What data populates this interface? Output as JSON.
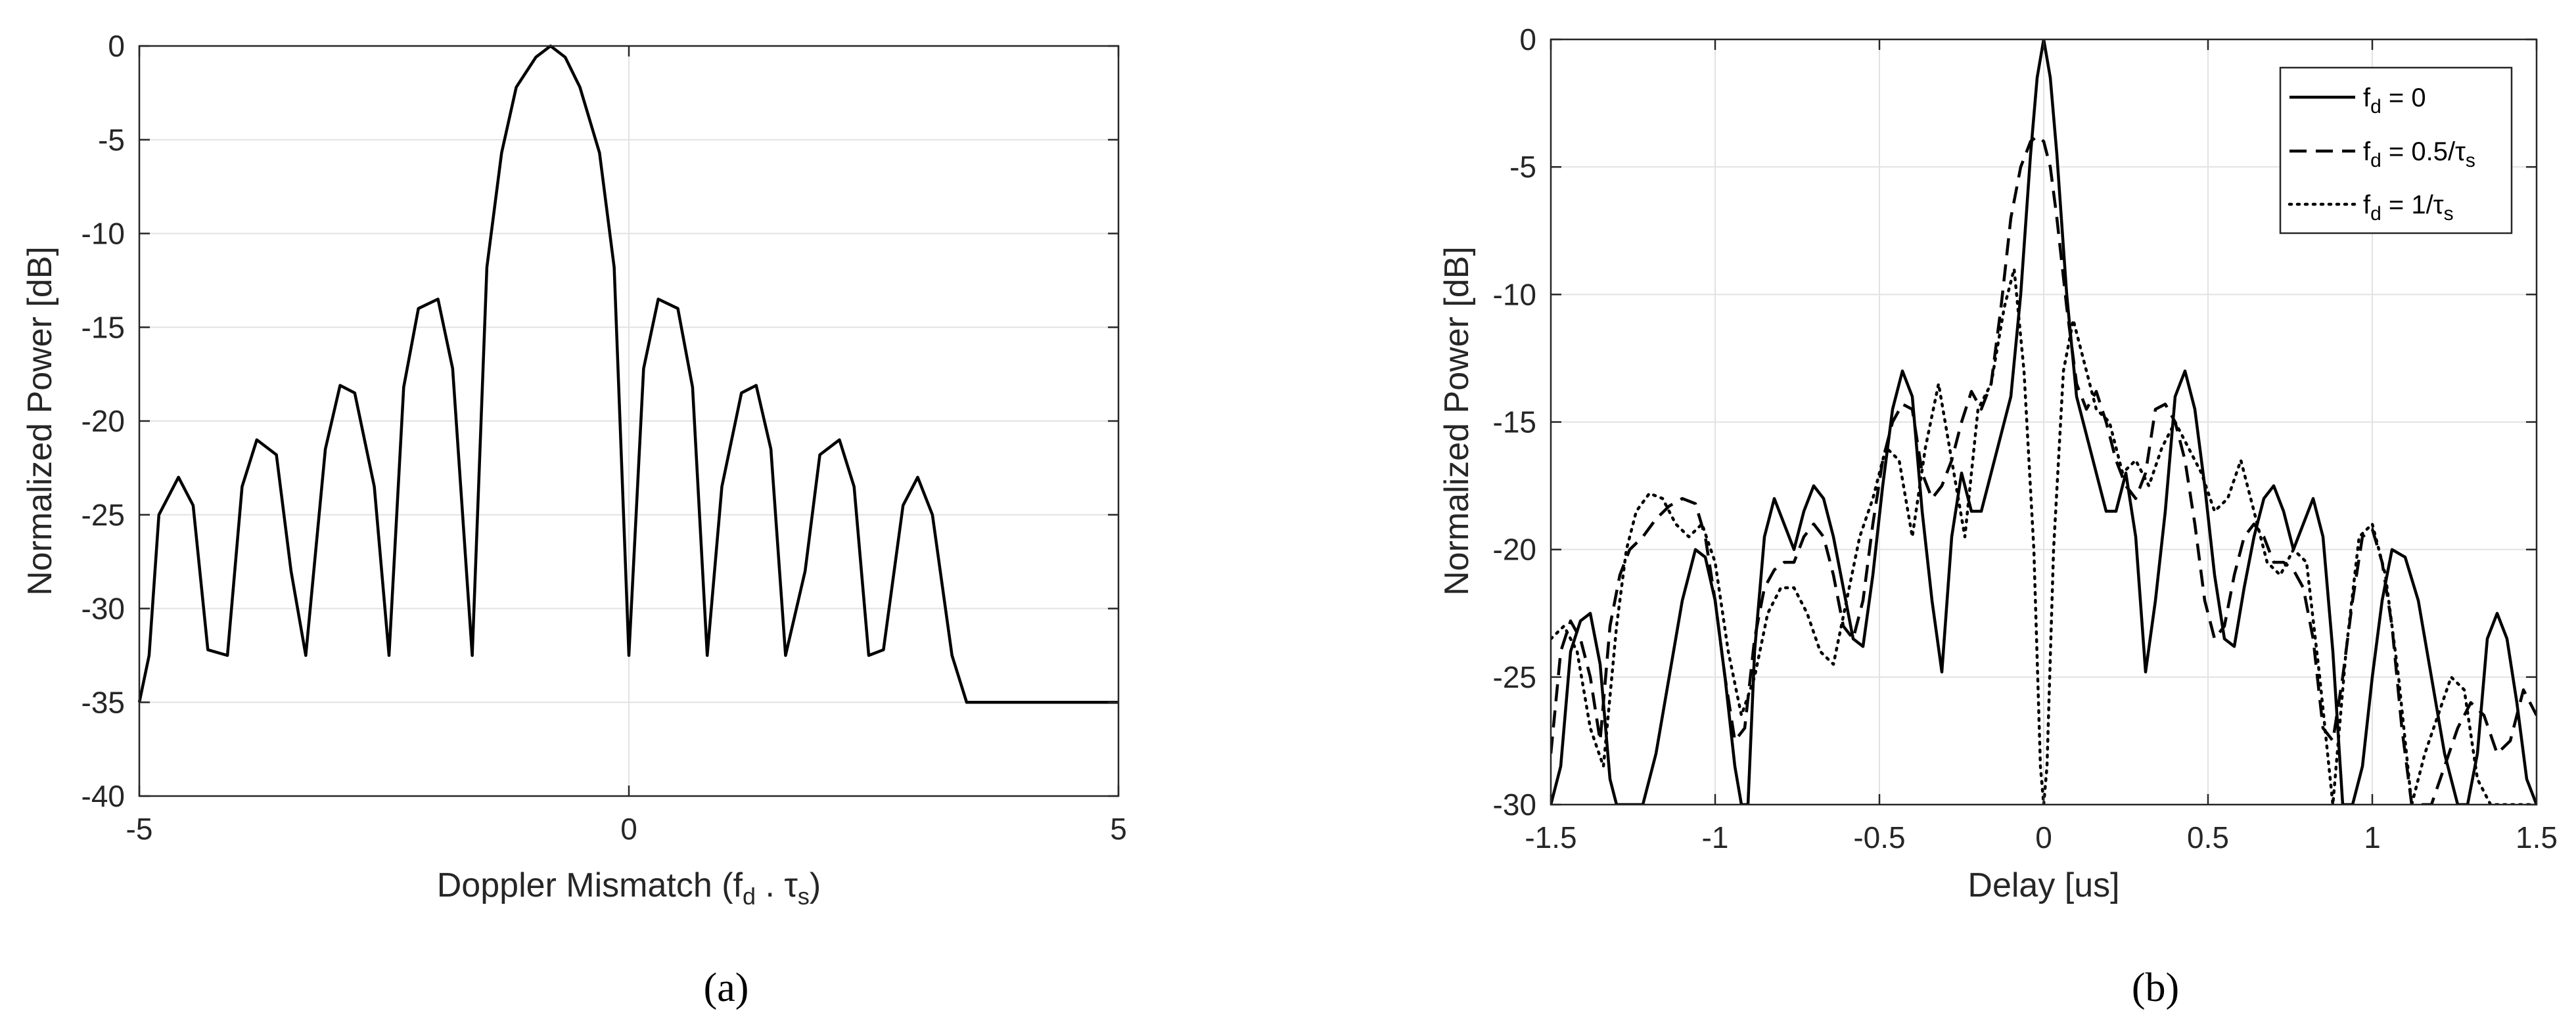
{
  "chart_data": [
    {
      "type": "line",
      "panel_label": "(a)",
      "xlabel_main": "Doppler Mismatch (f",
      "xlabel_sub1": "d",
      "xlabel_mid": " . τ",
      "xlabel_sub2": "s",
      "xlabel_end": ")",
      "ylabel": "Normalized Power [dB]",
      "xlim": [
        -5,
        5
      ],
      "ylim": [
        -40,
        0
      ],
      "xticks": [
        "-5",
        "0",
        "5"
      ],
      "xtick_values": [
        -5,
        0,
        5
      ],
      "yticks": [
        "0",
        "-5",
        "-10",
        "-15",
        "-20",
        "-25",
        "-30",
        "-35",
        "-40"
      ],
      "ytick_values": [
        0,
        -5,
        -10,
        -15,
        -20,
        -25,
        -30,
        -35,
        -40
      ],
      "grid": true,
      "series": [
        {
          "style": "solid",
          "x": [
            -5.0,
            -4.9,
            -4.8,
            -4.6,
            -4.45,
            -4.3,
            -4.1,
            -3.95,
            -3.8,
            -3.6,
            -3.45,
            -3.3,
            -3.1,
            -2.95,
            -2.8,
            -2.6,
            -2.45,
            -2.3,
            -2.15,
            -1.95,
            -1.8,
            -1.6,
            -1.45,
            -1.3,
            -1.15,
            -0.95,
            -0.8,
            -0.65,
            -0.5,
            -0.3,
            -0.15,
            0.0,
            0.15,
            0.3,
            0.5,
            0.65,
            0.8,
            0.95,
            1.15,
            1.3,
            1.45,
            1.6,
            1.8,
            1.95,
            2.15,
            2.3,
            2.45,
            2.6,
            2.8,
            2.95,
            3.1,
            3.3,
            3.45,
            3.6,
            3.8,
            3.95,
            4.1,
            4.3,
            4.45,
            4.6,
            4.8,
            4.9,
            5.0
          ],
          "y": [
            -35.0,
            -32.5,
            -25.0,
            -23.0,
            -24.5,
            -32.2,
            -32.5,
            -23.5,
            -21.0,
            -21.8,
            -28.0,
            -32.5,
            -21.5,
            -18.1,
            -18.5,
            -23.5,
            -32.5,
            -18.2,
            -14.0,
            -13.5,
            -17.2,
            -32.5,
            -11.8,
            -5.7,
            -2.2,
            -0.6,
            0.0,
            -0.6,
            -2.2,
            -5.7,
            -11.8,
            -32.5,
            -17.2,
            -13.5,
            -14.0,
            -18.2,
            -32.5,
            -23.5,
            -18.5,
            -18.1,
            -21.5,
            -32.5,
            -28.0,
            -21.8,
            -21.0,
            -23.5,
            -32.5,
            -32.2,
            -24.5,
            -23.0,
            -25.0,
            -32.5,
            -35.0,
            -35.0,
            -35.0,
            -35.0,
            -35.0,
            -35.0,
            -35.0,
            -35.0,
            -35.0,
            -35.0,
            -35.0
          ]
        }
      ]
    },
    {
      "type": "line",
      "panel_label": "(b)",
      "xlabel": "Delay [us]",
      "ylabel": "Normalized Power [dB]",
      "xlim": [
        -1.5,
        1.5
      ],
      "ylim": [
        -30,
        0
      ],
      "xticks": [
        "-1.5",
        "-1",
        "-0.5",
        "0",
        "0.5",
        "1",
        "1.5"
      ],
      "xtick_values": [
        -1.5,
        -1,
        -0.5,
        0,
        0.5,
        1,
        1.5
      ],
      "yticks": [
        "0",
        "-5",
        "-10",
        "-15",
        "-20",
        "-25",
        "-30"
      ],
      "ytick_values": [
        0,
        -5,
        -10,
        -15,
        -20,
        -25,
        -30
      ],
      "grid": true,
      "legend_position": "top-right",
      "series": [
        {
          "legend_main": "f",
          "legend_sub": "d",
          "legend_rest": " = 0",
          "style": "solid",
          "x": [
            -1.5,
            -1.47,
            -1.44,
            -1.41,
            -1.38,
            -1.35,
            -1.32,
            -1.3,
            -1.28,
            -1.25,
            -1.22,
            -1.18,
            -1.14,
            -1.1,
            -1.06,
            -1.03,
            -1.0,
            -0.97,
            -0.94,
            -0.92,
            -0.9,
            -0.88,
            -0.85,
            -0.82,
            -0.79,
            -0.76,
            -0.73,
            -0.7,
            -0.67,
            -0.64,
            -0.61,
            -0.58,
            -0.55,
            -0.52,
            -0.49,
            -0.46,
            -0.43,
            -0.4,
            -0.37,
            -0.34,
            -0.31,
            -0.28,
            -0.25,
            -0.22,
            -0.19,
            -0.16,
            -0.13,
            -0.1,
            -0.07,
            -0.04,
            -0.02,
            0.0,
            0.02,
            0.04,
            0.07,
            0.1,
            0.13,
            0.16,
            0.19,
            0.22,
            0.25,
            0.28,
            0.31,
            0.34,
            0.37,
            0.4,
            0.43,
            0.46,
            0.49,
            0.52,
            0.55,
            0.58,
            0.61,
            0.64,
            0.67,
            0.7,
            0.73,
            0.76,
            0.79,
            0.82,
            0.85,
            0.88,
            0.91,
            0.94,
            0.97,
            1.0,
            1.03,
            1.06,
            1.1,
            1.14,
            1.18,
            1.22,
            1.26,
            1.29,
            1.32,
            1.35,
            1.38,
            1.41,
            1.44,
            1.47,
            1.5
          ],
          "y": [
            -30.0,
            -28.5,
            -24.0,
            -22.8,
            -22.5,
            -24.5,
            -29.0,
            -30.0,
            -30.0,
            -30.0,
            -30.0,
            -28.0,
            -25.0,
            -22.0,
            -20.0,
            -20.3,
            -22.0,
            -25.0,
            -28.5,
            -30.0,
            -30.0,
            -24.0,
            -19.5,
            -18.0,
            -19.0,
            -20.0,
            -18.5,
            -17.5,
            -18.0,
            -19.5,
            -21.5,
            -23.5,
            -23.8,
            -21.0,
            -17.5,
            -14.5,
            -13.0,
            -14.0,
            -18.5,
            -22.0,
            -24.8,
            -19.5,
            -17.0,
            -18.5,
            -18.5,
            -17.0,
            -15.5,
            -14.0,
            -10.0,
            -4.5,
            -1.5,
            0.0,
            -1.5,
            -4.5,
            -10.0,
            -14.0,
            -15.5,
            -17.0,
            -18.5,
            -18.5,
            -17.0,
            -19.5,
            -24.8,
            -22.0,
            -18.5,
            -14.0,
            -13.0,
            -14.5,
            -17.5,
            -21.0,
            -23.5,
            -23.8,
            -21.5,
            -19.5,
            -18.0,
            -17.5,
            -18.5,
            -20.0,
            -19.0,
            -18.0,
            -19.5,
            -24.0,
            -30.0,
            -30.0,
            -28.5,
            -25.0,
            -22.0,
            -20.0,
            -20.3,
            -22.0,
            -25.0,
            -28.0,
            -30.0,
            -30.0,
            -28.0,
            -23.5,
            -22.5,
            -23.5,
            -26.0,
            -29.0,
            -30.0
          ]
        },
        {
          "legend_main": "f",
          "legend_sub": "d",
          "legend_rest": " = 0.5/τ",
          "legend_sub2": "s",
          "style": "dashed",
          "x": [
            -1.5,
            -1.47,
            -1.44,
            -1.41,
            -1.38,
            -1.35,
            -1.32,
            -1.29,
            -1.26,
            -1.22,
            -1.18,
            -1.14,
            -1.1,
            -1.06,
            -1.03,
            -1.0,
            -0.97,
            -0.94,
            -0.91,
            -0.88,
            -0.85,
            -0.82,
            -0.79,
            -0.76,
            -0.73,
            -0.7,
            -0.67,
            -0.64,
            -0.61,
            -0.58,
            -0.55,
            -0.52,
            -0.49,
            -0.46,
            -0.43,
            -0.4,
            -0.37,
            -0.34,
            -0.31,
            -0.28,
            -0.25,
            -0.22,
            -0.19,
            -0.16,
            -0.13,
            -0.1,
            -0.07,
            -0.04,
            -0.02,
            0.0,
            0.02,
            0.04,
            0.07,
            0.1,
            0.13,
            0.16,
            0.19,
            0.22,
            0.25,
            0.28,
            0.31,
            0.34,
            0.37,
            0.4,
            0.43,
            0.46,
            0.49,
            0.52,
            0.55,
            0.58,
            0.61,
            0.64,
            0.67,
            0.7,
            0.73,
            0.76,
            0.79,
            0.82,
            0.85,
            0.88,
            0.91,
            0.94,
            0.97,
            1.0,
            1.03,
            1.06,
            1.09,
            1.12,
            1.15,
            1.18,
            1.22,
            1.26,
            1.3,
            1.34,
            1.38,
            1.42,
            1.46,
            1.5
          ],
          "y": [
            -28.0,
            -24.0,
            -22.8,
            -23.5,
            -25.0,
            -27.5,
            -23.0,
            -21.0,
            -20.0,
            -19.5,
            -18.8,
            -18.3,
            -18.0,
            -18.2,
            -19.5,
            -22.0,
            -25.0,
            -27.5,
            -27.0,
            -23.5,
            -21.5,
            -20.8,
            -20.5,
            -20.5,
            -19.5,
            -19.0,
            -19.5,
            -21.0,
            -23.0,
            -23.5,
            -22.0,
            -19.0,
            -16.5,
            -15.0,
            -14.3,
            -14.5,
            -17.0,
            -18.0,
            -17.5,
            -16.5,
            -15.0,
            -13.8,
            -14.5,
            -13.5,
            -10.5,
            -7.0,
            -5.0,
            -4.0,
            -3.8,
            -4.0,
            -5.0,
            -7.0,
            -10.5,
            -13.5,
            -14.5,
            -13.8,
            -15.0,
            -16.5,
            -17.5,
            -18.0,
            -17.0,
            -14.5,
            -14.3,
            -15.0,
            -16.5,
            -19.0,
            -22.0,
            -23.5,
            -23.0,
            -21.0,
            -19.5,
            -19.0,
            -19.5,
            -20.5,
            -20.5,
            -20.8,
            -21.5,
            -23.5,
            -27.0,
            -27.5,
            -25.0,
            -22.0,
            -19.5,
            -19.2,
            -20.5,
            -23.0,
            -27.0,
            -30.0,
            -30.0,
            -30.0,
            -28.5,
            -27.0,
            -26.0,
            -26.5,
            -28.0,
            -27.5,
            -25.5,
            -26.5
          ]
        },
        {
          "legend_main": "f",
          "legend_sub": "d",
          "legend_rest": " = 1/τ",
          "legend_sub2": "s",
          "style": "dotted",
          "x": [
            -1.5,
            -1.46,
            -1.42,
            -1.38,
            -1.34,
            -1.3,
            -1.27,
            -1.24,
            -1.2,
            -1.16,
            -1.12,
            -1.08,
            -1.04,
            -1.0,
            -0.96,
            -0.92,
            -0.88,
            -0.84,
            -0.8,
            -0.76,
            -0.72,
            -0.68,
            -0.64,
            -0.6,
            -0.56,
            -0.52,
            -0.48,
            -0.44,
            -0.4,
            -0.36,
            -0.32,
            -0.28,
            -0.24,
            -0.2,
            -0.16,
            -0.12,
            -0.09,
            -0.06,
            -0.03,
            -0.01,
            0.0,
            0.01,
            0.03,
            0.06,
            0.09,
            0.12,
            0.16,
            0.2,
            0.24,
            0.28,
            0.32,
            0.36,
            0.4,
            0.44,
            0.48,
            0.52,
            0.56,
            0.6,
            0.64,
            0.68,
            0.72,
            0.76,
            0.8,
            0.84,
            0.88,
            0.92,
            0.96,
            1.0,
            1.04,
            1.08,
            1.12,
            1.16,
            1.2,
            1.24,
            1.28,
            1.32,
            1.36,
            1.4,
            1.44,
            1.48,
            1.5
          ],
          "y": [
            -23.5,
            -23.0,
            -24.0,
            -27.0,
            -28.5,
            -23.0,
            -20.0,
            -18.5,
            -17.8,
            -18.0,
            -19.0,
            -19.5,
            -19.0,
            -20.5,
            -24.0,
            -26.5,
            -25.0,
            -22.5,
            -21.5,
            -21.5,
            -22.5,
            -24.0,
            -24.5,
            -22.0,
            -19.5,
            -18.0,
            -16.0,
            -16.5,
            -19.5,
            -16.0,
            -13.5,
            -16.5,
            -19.5,
            -14.5,
            -13.5,
            -10.5,
            -9.0,
            -13.0,
            -20.0,
            -28.5,
            -30.0,
            -28.5,
            -20.0,
            -13.0,
            -11.0,
            -12.5,
            -14.5,
            -15.0,
            -17.0,
            -16.5,
            -17.5,
            -16.0,
            -15.0,
            -16.0,
            -17.0,
            -18.5,
            -18.0,
            -16.5,
            -18.5,
            -20.5,
            -21.0,
            -20.0,
            -20.5,
            -25.0,
            -30.0,
            -24.0,
            -19.5,
            -19.0,
            -21.0,
            -25.0,
            -30.0,
            -28.0,
            -26.5,
            -25.0,
            -25.5,
            -29.0,
            -30.0,
            -30.0,
            -30.0,
            -30.0,
            -30.0
          ]
        }
      ]
    }
  ]
}
